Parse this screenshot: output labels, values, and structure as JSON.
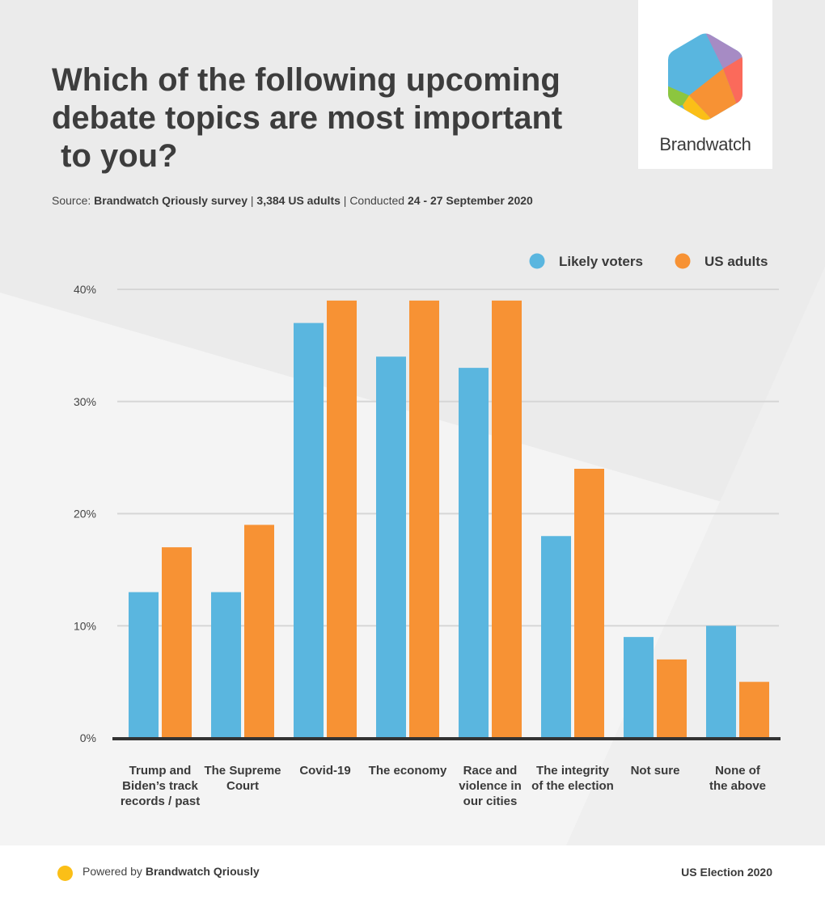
{
  "title": "Which of the following upcoming\ndebate topics are most important\n to you?",
  "source": {
    "prefix": "Source: ",
    "survey": "Brandwatch Qriously survey",
    "sep1": " | ",
    "sample": "3,384 US adults",
    "sep2": " | Conducted ",
    "dates": "24 - 27 September 2020"
  },
  "logo": {
    "text": "Brandwatch"
  },
  "colors": {
    "likely_voters": "#5ab6df",
    "us_adults": "#f79234",
    "grid": "#d6d6d6",
    "axis": "#333333"
  },
  "chart_data": {
    "type": "bar",
    "title": "Which of the following upcoming debate topics are most important to you?",
    "categories": [
      "Trump and Biden's track records / past",
      "The Supreme Court",
      "Covid-19",
      "The economy",
      "Race and violence in our cities",
      "The integrity of the election",
      "Not sure",
      "None of the above"
    ],
    "category_lines": [
      [
        "Trump and",
        "Biden’s track",
        "records / past"
      ],
      [
        "The Supreme",
        "Court"
      ],
      [
        "Covid-19"
      ],
      [
        "The economy"
      ],
      [
        "Race and",
        "violence in",
        "our cities"
      ],
      [
        "The integrity",
        "of the election"
      ],
      [
        "Not sure"
      ],
      [
        "None of",
        "the above"
      ]
    ],
    "series": [
      {
        "name": "Likely voters",
        "values": [
          13,
          13,
          37,
          34,
          33,
          18,
          9,
          10
        ]
      },
      {
        "name": "US adults",
        "values": [
          17,
          19,
          39,
          39,
          39,
          24,
          7,
          5
        ]
      }
    ],
    "y_ticks": [
      "0%",
      "10%",
      "20%",
      "30%",
      "40%"
    ],
    "ylim": [
      0,
      40
    ],
    "grid": true,
    "legend_position": "top-right",
    "xlabel": "",
    "ylabel": ""
  },
  "footer": {
    "powered_prefix": "Powered by ",
    "powered_brand": "Brandwatch Qriously",
    "right": "US Election 2020"
  }
}
